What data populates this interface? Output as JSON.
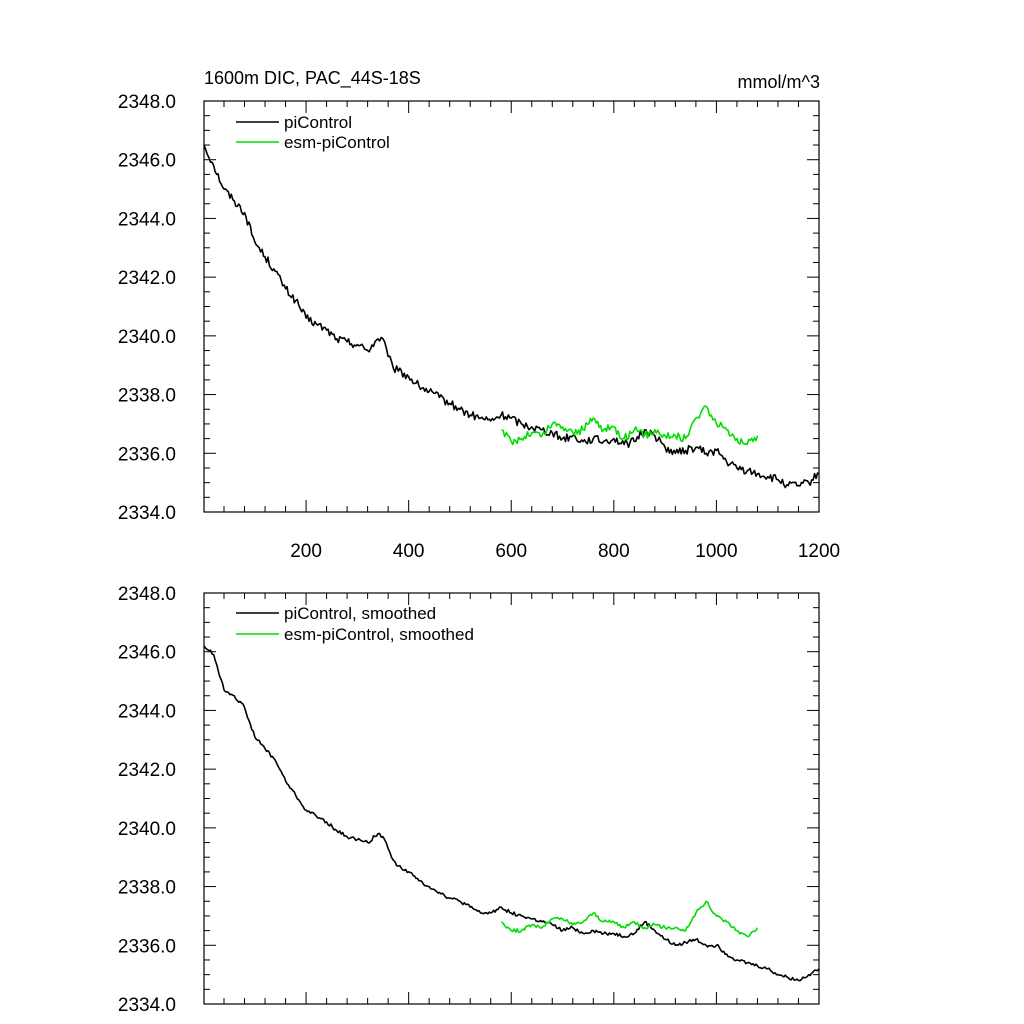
{
  "chart_data": [
    {
      "type": "line",
      "title_left": "1600m DIC, PAC_44S-18S",
      "title_right": "mmol/m^3",
      "xlabel": "",
      "ylabel": "",
      "xlim": [
        1,
        1200
      ],
      "ylim": [
        2334.0,
        2348.0
      ],
      "yticks": [
        "2348.0",
        "2346.0",
        "2344.0",
        "2342.0",
        "2340.0",
        "2338.0",
        "2336.0",
        "2334.0"
      ],
      "xticks": [
        "200",
        "400",
        "600",
        "800",
        "1000",
        "1200"
      ],
      "legend_position": "top-left",
      "grid": false,
      "series": [
        {
          "name": "piControl",
          "color": "#000000",
          "x": [
            1,
            20,
            40,
            60,
            80,
            100,
            120,
            140,
            160,
            180,
            200,
            220,
            240,
            260,
            280,
            300,
            320,
            340,
            350,
            360,
            370,
            380,
            400,
            420,
            440,
            460,
            480,
            500,
            520,
            540,
            560,
            580,
            600,
            620,
            640,
            660,
            680,
            700,
            720,
            740,
            760,
            780,
            800,
            820,
            840,
            860,
            880,
            900,
            920,
            940,
            960,
            980,
            1000,
            1020,
            1040,
            1060,
            1080,
            1100,
            1120,
            1140,
            1160,
            1180,
            1200
          ],
          "y": [
            2346.5,
            2345.8,
            2345.0,
            2344.6,
            2344.2,
            2343.2,
            2342.7,
            2342.2,
            2341.6,
            2341.2,
            2340.6,
            2340.4,
            2340.2,
            2339.9,
            2339.8,
            2339.7,
            2339.5,
            2339.9,
            2339.9,
            2339.3,
            2338.9,
            2338.8,
            2338.6,
            2338.3,
            2338.1,
            2337.9,
            2337.7,
            2337.5,
            2337.3,
            2337.2,
            2337.1,
            2337.3,
            2337.2,
            2337.0,
            2336.9,
            2336.8,
            2336.7,
            2336.5,
            2336.6,
            2336.4,
            2336.5,
            2336.4,
            2336.5,
            2336.3,
            2336.4,
            2336.8,
            2336.6,
            2336.2,
            2336.0,
            2336.1,
            2336.2,
            2336.0,
            2336.1,
            2335.7,
            2335.5,
            2335.4,
            2335.3,
            2335.2,
            2335.1,
            2334.9,
            2334.9,
            2335.0,
            2335.3
          ]
        },
        {
          "name": "esm-piControl",
          "color": "#00dd00",
          "x": [
            581,
            600,
            620,
            640,
            660,
            680,
            700,
            720,
            740,
            760,
            780,
            800,
            820,
            840,
            860,
            880,
            900,
            920,
            940,
            960,
            970,
            980,
            990,
            1000,
            1020,
            1040,
            1060,
            1080
          ],
          "y": [
            2336.8,
            2336.4,
            2336.5,
            2336.7,
            2336.6,
            2337.0,
            2336.9,
            2336.7,
            2336.8,
            2337.2,
            2336.8,
            2336.9,
            2336.5,
            2336.8,
            2336.6,
            2336.8,
            2336.6,
            2336.6,
            2336.5,
            2337.2,
            2337.4,
            2337.6,
            2337.3,
            2337.0,
            2336.8,
            2336.5,
            2336.3,
            2336.6
          ]
        }
      ]
    },
    {
      "type": "line",
      "title_left": "",
      "title_right": "",
      "xlabel": "",
      "ylabel": "",
      "xlim": [
        1,
        1200
      ],
      "ylim": [
        2334.0,
        2348.0
      ],
      "yticks": [
        "2348.0",
        "2346.0",
        "2344.0",
        "2342.0",
        "2340.0",
        "2338.0",
        "2336.0",
        "2334.0"
      ],
      "xticks": [],
      "legend_position": "top-left",
      "grid": false,
      "series": [
        {
          "name": "piControl, smoothed",
          "color": "#000000",
          "x": [
            1,
            20,
            40,
            60,
            80,
            100,
            120,
            140,
            160,
            180,
            200,
            220,
            240,
            260,
            280,
            300,
            320,
            340,
            350,
            360,
            370,
            380,
            400,
            420,
            440,
            460,
            480,
            500,
            520,
            540,
            560,
            580,
            600,
            620,
            640,
            660,
            680,
            700,
            720,
            740,
            760,
            780,
            800,
            820,
            840,
            860,
            880,
            900,
            920,
            940,
            960,
            980,
            1000,
            1020,
            1040,
            1060,
            1080,
            1100,
            1120,
            1140,
            1160,
            1180,
            1200
          ],
          "y": [
            2346.2,
            2345.9,
            2344.7,
            2344.5,
            2344.1,
            2343.1,
            2342.7,
            2342.3,
            2341.6,
            2341.1,
            2340.6,
            2340.4,
            2340.2,
            2339.9,
            2339.7,
            2339.6,
            2339.5,
            2339.8,
            2339.7,
            2339.3,
            2338.9,
            2338.7,
            2338.5,
            2338.2,
            2338.0,
            2337.8,
            2337.6,
            2337.5,
            2337.3,
            2337.1,
            2337.1,
            2337.3,
            2337.1,
            2337.0,
            2336.9,
            2336.8,
            2336.7,
            2336.5,
            2336.6,
            2336.4,
            2336.5,
            2336.4,
            2336.4,
            2336.3,
            2336.4,
            2336.8,
            2336.5,
            2336.2,
            2336.0,
            2336.1,
            2336.2,
            2336.0,
            2336.0,
            2335.7,
            2335.5,
            2335.4,
            2335.3,
            2335.2,
            2335.0,
            2334.9,
            2334.8,
            2335.0,
            2335.2
          ]
        },
        {
          "name": "esm-piControl, smoothed",
          "color": "#00dd00",
          "x": [
            581,
            600,
            620,
            640,
            660,
            680,
            700,
            720,
            740,
            760,
            780,
            800,
            820,
            840,
            860,
            880,
            900,
            920,
            940,
            960,
            970,
            980,
            990,
            1000,
            1020,
            1040,
            1060,
            1080
          ],
          "y": [
            2336.8,
            2336.5,
            2336.5,
            2336.7,
            2336.6,
            2336.9,
            2336.9,
            2336.7,
            2336.8,
            2337.1,
            2336.8,
            2336.8,
            2336.6,
            2336.8,
            2336.6,
            2336.7,
            2336.6,
            2336.6,
            2336.5,
            2337.1,
            2337.3,
            2337.5,
            2337.2,
            2337.0,
            2336.8,
            2336.5,
            2336.3,
            2336.6
          ]
        }
      ]
    }
  ]
}
